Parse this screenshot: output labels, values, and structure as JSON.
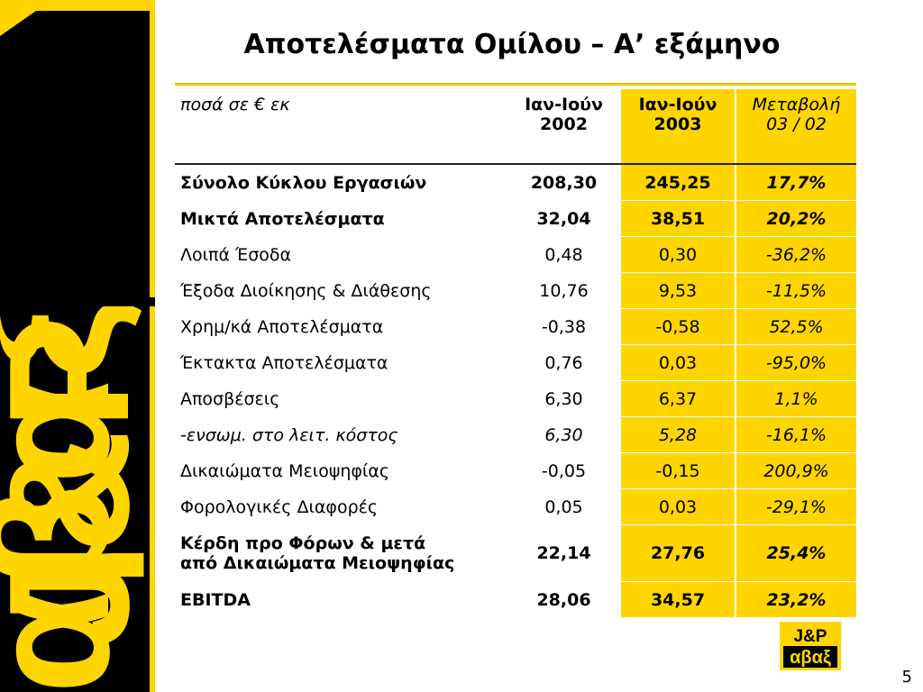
{
  "slide": {
    "title": "Αποτελέσματα Ομίλου – Α’ εξάμηνο",
    "page_number": "5"
  },
  "brand": {
    "logo_top": "J&P",
    "logo_bottom": "αβαξ",
    "colors": {
      "yellow": "#ffd500",
      "black": "#000000"
    }
  },
  "table": {
    "header": {
      "label": "ποσά σε € εκ",
      "col1_line1": "Ιαν-Ιούν",
      "col1_line2": "2002",
      "col2_line1": "Ιαν-Ιούν",
      "col2_line2": "2003",
      "col3_line1": "Μεταβολή",
      "col3_line2": "03 / 02"
    },
    "rows": [
      {
        "label": "Σύνολο Κύκλου Εργασιών",
        "y2002": "208,30",
        "y2003": "245,25",
        "change": "17,7%"
      },
      {
        "label": "Μικτά Αποτελέσματα",
        "y2002": "32,04",
        "y2003": "38,51",
        "change": "20,2%"
      },
      {
        "label": "Λοιπά Έσοδα",
        "y2002": "0,48",
        "y2003": "0,30",
        "change": "-36,2%"
      },
      {
        "label": "Έξοδα Διοίκησης & Διάθεσης",
        "y2002": "10,76",
        "y2003": "9,53",
        "change": "-11,5%"
      },
      {
        "label": "Χρημ/κά Αποτελέσματα",
        "y2002": "-0,38",
        "y2003": "-0,58",
        "change": "52,5%"
      },
      {
        "label": "Έκτακτα Αποτελέσματα",
        "y2002": "0,76",
        "y2003": "0,03",
        "change": "-95,0%"
      },
      {
        "label": "Αποσβέσεις",
        "y2002": "6,30",
        "y2003": "6,37",
        "change": "1,1%"
      },
      {
        "label": "-ενσωμ. στο λειτ. κόστος",
        "y2002": "6,30",
        "y2003": "5,28",
        "change": "-16,1%"
      },
      {
        "label": "Δικαιώματα Μειοψηφίας",
        "y2002": "-0,05",
        "y2003": "-0,15",
        "change": "200,9%"
      },
      {
        "label": "Φορολογικές Διαφορές",
        "y2002": "0,05",
        "y2003": "0,03",
        "change": "-29,1%"
      },
      {
        "label_line1": "Κέρδη προ Φόρων & μετά",
        "label_line2": "από Δικαιώματα Μειοψηφίας",
        "y2002": "22,14",
        "y2003": "27,76",
        "change": "25,4%"
      },
      {
        "label": "EBITDA",
        "y2002": "28,06",
        "y2003": "34,57",
        "change": "23,2%"
      }
    ]
  }
}
